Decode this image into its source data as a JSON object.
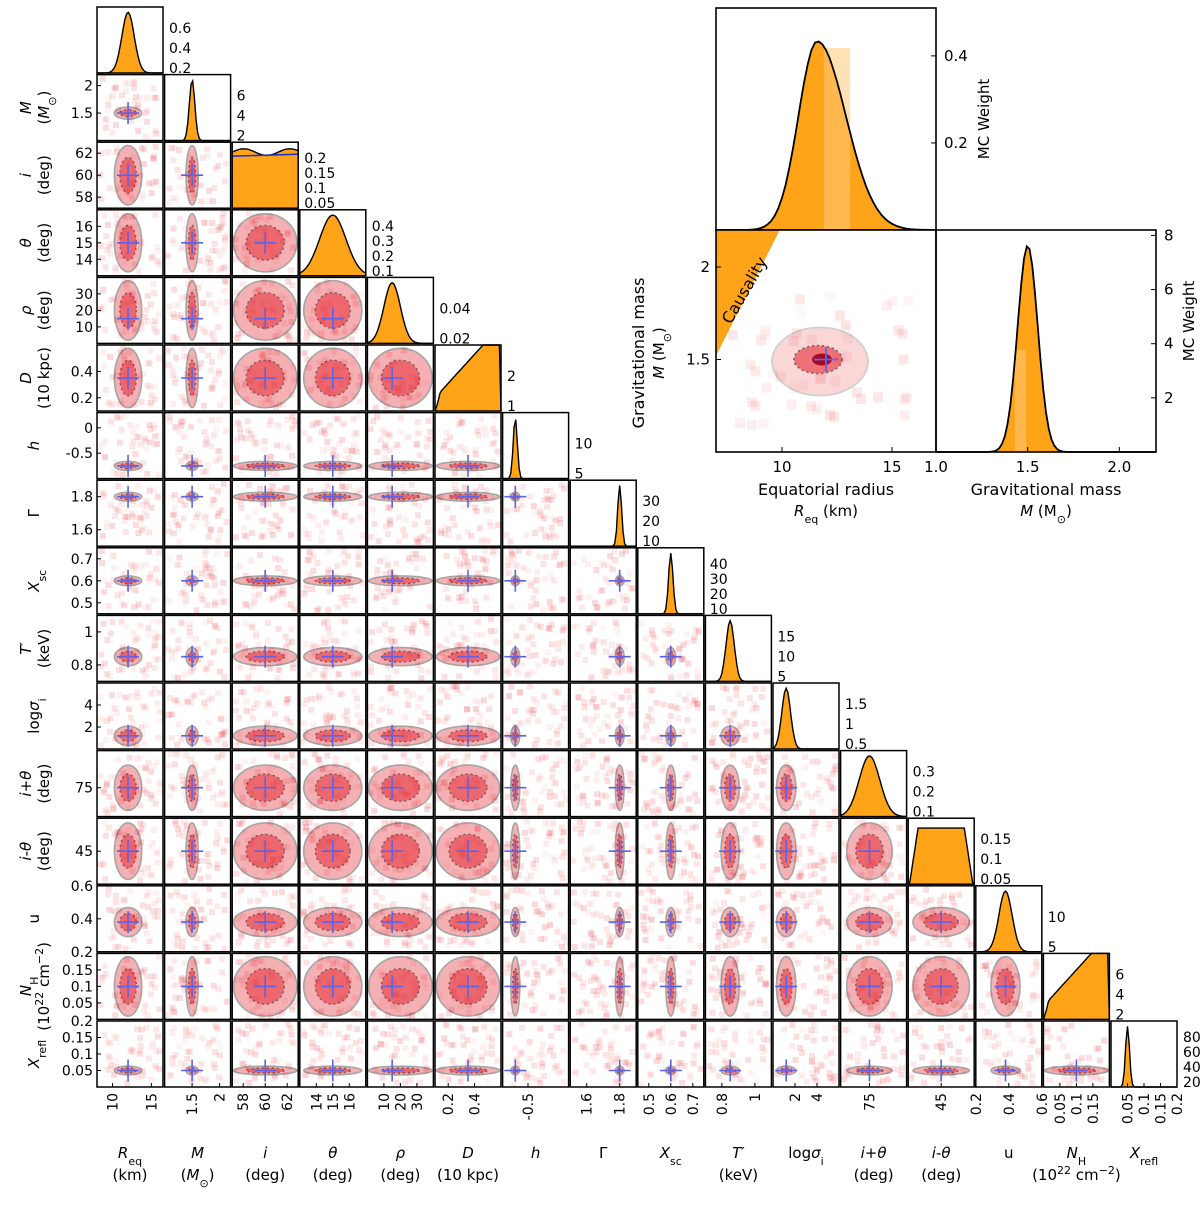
{
  "chart_data": [
    {
      "type": "corner",
      "parameters": [
        {
          "id": "Req",
          "label": "R_eq",
          "unit": "(km)",
          "ylabel": "",
          "ticks": [
            10,
            15
          ],
          "truth": 12.0,
          "sigma": 0.8,
          "range": [
            8,
            16.5
          ],
          "hist_ticks": [
            0.2,
            0.4,
            0.6
          ]
        },
        {
          "id": "M",
          "label": "M",
          "unit": "(M_⊙)",
          "ticks": [
            1.5,
            2.0
          ],
          "yticks": [
            1.5,
            2.0
          ],
          "truth": 1.5,
          "sigma": 0.05,
          "range": [
            1.0,
            2.2
          ],
          "hist_ticks": [
            2,
            4,
            6
          ]
        },
        {
          "id": "i",
          "label": "i",
          "unit": "(deg)",
          "ticks": [
            58,
            60,
            62
          ],
          "truth": 60,
          "sigma": 1.8,
          "range": [
            57,
            63
          ],
          "hist_ticks": [
            0.05,
            0.1,
            0.15,
            0.2
          ],
          "flat": true
        },
        {
          "id": "theta",
          "label": "θ",
          "unit": "(deg)",
          "ticks": [
            14,
            15,
            16
          ],
          "truth": 15,
          "sigma": 0.8,
          "range": [
            13,
            17
          ],
          "hist_ticks": [
            0.1,
            0.2,
            0.3,
            0.4
          ]
        },
        {
          "id": "rho",
          "label": "ρ",
          "unit": "(deg)",
          "ticks": [
            10,
            20,
            30
          ],
          "truth": 15,
          "sigma": 5,
          "range": [
            0,
            40
          ],
          "hist_ticks": [
            0.02,
            0.04
          ]
        },
        {
          "id": "D",
          "label": "D",
          "unit": "(10 kpc)",
          "ticks": [
            0.2,
            0.4
          ],
          "truth": 0.35,
          "sigma": 0.12,
          "range": [
            0.1,
            0.6
          ],
          "hist_ticks": [
            1,
            2
          ]
        },
        {
          "id": "h",
          "label": "h",
          "yticks": [
            -0.5,
            0.0
          ],
          "xticks": [
            -0.5
          ],
          "truth": -0.75,
          "sigma": 0.04,
          "range": [
            -1.0,
            0.3
          ],
          "hist_ticks": [
            5,
            10
          ]
        },
        {
          "id": "Gamma",
          "label": "Γ",
          "ticks": [
            1.6,
            1.8
          ],
          "truth": 1.8,
          "sigma": 0.012,
          "range": [
            1.5,
            1.9
          ],
          "hist_ticks": [
            10,
            20,
            30
          ]
        },
        {
          "id": "Xsc",
          "label": "X_sc",
          "ticks": [
            0.5,
            0.6,
            0.7
          ],
          "truth": 0.6,
          "sigma": 0.01,
          "range": [
            0.45,
            0.75
          ],
          "hist_ticks": [
            10,
            20,
            30,
            40
          ]
        },
        {
          "id": "T",
          "label": "T′",
          "unit": "(keV)",
          "ticks": [
            0.8,
            1.0
          ],
          "truth": 0.85,
          "sigma": 0.025,
          "range": [
            0.7,
            1.1
          ],
          "hist_ticks": [
            5,
            10,
            15
          ]
        },
        {
          "id": "logsig",
          "label": "log σ_i",
          "yticks": [
            2,
            4
          ],
          "xticks": [
            2,
            4
          ],
          "truth": 1.2,
          "sigma": 0.4,
          "range": [
            0,
            6
          ],
          "hist_ticks": [
            0.5,
            1.0,
            1.5
          ]
        },
        {
          "id": "ipt",
          "label": "i+θ",
          "unit": "(deg)",
          "ticks": [
            75
          ],
          "truth": 75,
          "sigma": 2.5,
          "range": [
            68,
            84
          ],
          "hist_ticks": [
            0.1,
            0.2,
            0.3
          ]
        },
        {
          "id": "imt",
          "label": "i-θ",
          "unit": "(deg)",
          "ticks": [
            45
          ],
          "truth": 45,
          "sigma": 3.5,
          "range": [
            36,
            54
          ],
          "hist_ticks": [
            0.05,
            0.1,
            0.15
          ]
        },
        {
          "id": "u",
          "label": "u",
          "yticks": [
            0.2,
            0.4,
            0.6
          ],
          "xticks": [
            0.2,
            0.4,
            0.6
          ],
          "truth": 0.38,
          "sigma": 0.04,
          "range": [
            0.2,
            0.6
          ],
          "hist_ticks": [
            5,
            10
          ]
        },
        {
          "id": "NH",
          "label": "N_H",
          "unit": "(10^22 cm^-2)",
          "ticks": [
            0.05,
            0.1,
            0.15
          ],
          "truth": 0.1,
          "sigma": 0.05,
          "range": [
            0,
            0.2
          ],
          "hist_ticks": [
            2,
            4,
            6
          ]
        },
        {
          "id": "Xrefl",
          "label": "X_refl",
          "ticks": [
            0.05,
            0.1,
            0.15,
            0.2
          ],
          "truth": 0.05,
          "sigma": 0.006,
          "range": [
            0.0,
            0.2
          ],
          "hist_ticks": [
            20,
            40,
            60,
            80
          ]
        }
      ]
    },
    {
      "type": "corner-inset",
      "panels": [
        "R_eq marginal",
        "M vs R_eq joint",
        "M marginal"
      ],
      "xlabel_1": "Equatorial radius",
      "xlabel_1_sym": "R",
      "xlabel_1_sub": "eq",
      "xlabel_1_unit": " (km)",
      "xlabel_2": "Gravitational mass",
      "xlabel_2_sym": "M",
      "xlabel_2_unit": " (M",
      "ylabel_joint": "Gravitational mass",
      "ylabel_joint_sym": "M",
      "ylabel_joint_unit": " (M",
      "ylabel_hist": "MC Weight",
      "xticks_R": [
        10,
        15
      ],
      "xticks_M": [
        1.0,
        1.5,
        2.0
      ],
      "yticks_M": [
        1.5,
        2.0
      ],
      "yticks_histR": [
        0.2,
        0.4
      ],
      "yticks_histM": [
        2,
        4,
        6,
        8
      ],
      "truth": {
        "Req": 12.0,
        "M": 1.5
      },
      "region_label": "Causality"
    }
  ],
  "colors": {
    "hist_fill": "#ffa319",
    "hist_fill_light": "#ffc97a",
    "density": "#e4202a",
    "truth": "#5e63e6",
    "line": "#000000",
    "overlay_line": "#2233cc"
  }
}
